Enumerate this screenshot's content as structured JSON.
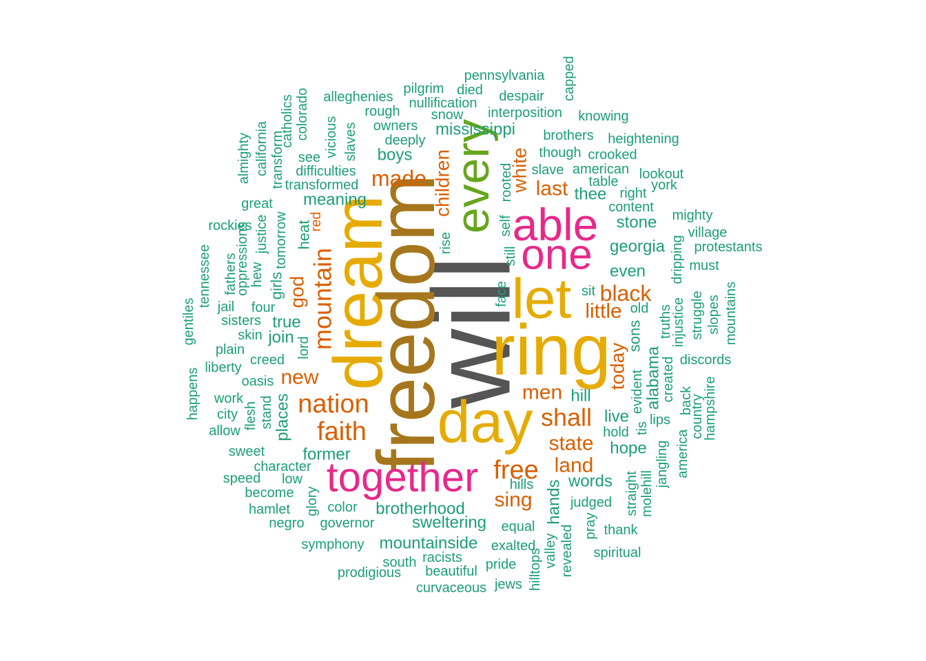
{
  "chart_data": {
    "type": "wordcloud",
    "title": "",
    "palette": {
      "teal": "#1b9e77",
      "orange": "#d95f02",
      "magenta": "#e7298a",
      "green": "#66a61e",
      "gold": "#e6ab02",
      "brown": "#a6761d",
      "gray": "#555555"
    },
    "words": [
      {
        "text": "will",
        "color": "gray",
        "tier": 9
      },
      {
        "text": "freedom",
        "color": "brown",
        "tier": 8
      },
      {
        "text": "ring",
        "color": "gold",
        "tier": 7
      },
      {
        "text": "dream",
        "color": "gold",
        "tier": 7
      },
      {
        "text": "day",
        "color": "gold",
        "tier": 7
      },
      {
        "text": "let",
        "color": "gold",
        "tier": 7
      },
      {
        "text": "every",
        "color": "green",
        "tier": 6
      },
      {
        "text": "able",
        "color": "magenta",
        "tier": 5
      },
      {
        "text": "one",
        "color": "magenta",
        "tier": 5
      },
      {
        "text": "together",
        "color": "magenta",
        "tier": 5
      },
      {
        "text": "nation",
        "color": "orange",
        "tier": 4
      },
      {
        "text": "faith",
        "color": "orange",
        "tier": 4
      },
      {
        "text": "mountain",
        "color": "orange",
        "tier": 4
      },
      {
        "text": "free",
        "color": "orange",
        "tier": 4
      },
      {
        "text": "shall",
        "color": "orange",
        "tier": 4
      },
      {
        "text": "black",
        "color": "orange",
        "tier": 3
      },
      {
        "text": "made",
        "color": "orange",
        "tier": 3
      },
      {
        "text": "new",
        "color": "orange",
        "tier": 3
      },
      {
        "text": "sing",
        "color": "orange",
        "tier": 3
      },
      {
        "text": "land",
        "color": "orange",
        "tier": 3
      },
      {
        "text": "state",
        "color": "orange",
        "tier": 3
      },
      {
        "text": "men",
        "color": "orange",
        "tier": 3
      },
      {
        "text": "today",
        "color": "orange",
        "tier": 3
      },
      {
        "text": "children",
        "color": "orange",
        "tier": 3
      },
      {
        "text": "white",
        "color": "orange",
        "tier": 3
      },
      {
        "text": "last",
        "color": "orange",
        "tier": 3
      },
      {
        "text": "little",
        "color": "orange",
        "tier": 3
      },
      {
        "text": "god",
        "color": "orange",
        "tier": 3
      },
      {
        "text": "brotherhood",
        "color": "teal",
        "tier": 2
      },
      {
        "text": "mountainside",
        "color": "teal",
        "tier": 2
      },
      {
        "text": "sweltering",
        "color": "teal",
        "tier": 2
      },
      {
        "text": "mississippi",
        "color": "teal",
        "tier": 2
      },
      {
        "text": "georgia",
        "color": "teal",
        "tier": 2
      },
      {
        "text": "alabama",
        "color": "teal",
        "tier": 2
      },
      {
        "text": "meaning",
        "color": "teal",
        "tier": 2
      },
      {
        "text": "former",
        "color": "teal",
        "tier": 2
      },
      {
        "text": "hands",
        "color": "teal",
        "tier": 2
      },
      {
        "text": "words",
        "color": "teal",
        "tier": 2
      },
      {
        "text": "hope",
        "color": "teal",
        "tier": 2
      },
      {
        "text": "stone",
        "color": "teal",
        "tier": 2
      },
      {
        "text": "even",
        "color": "teal",
        "tier": 2
      },
      {
        "text": "boys",
        "color": "teal",
        "tier": 2
      },
      {
        "text": "thee",
        "color": "teal",
        "tier": 2
      },
      {
        "text": "true",
        "color": "teal",
        "tier": 2
      },
      {
        "text": "join",
        "color": "teal",
        "tier": 2
      },
      {
        "text": "places",
        "color": "teal",
        "tier": 2
      },
      {
        "text": "girls",
        "color": "teal",
        "tier": 2
      },
      {
        "text": "heat",
        "color": "teal",
        "tier": 2
      },
      {
        "text": "live",
        "color": "teal",
        "tier": 2
      },
      {
        "text": "hill",
        "color": "teal",
        "tier": 2
      },
      {
        "text": "sons",
        "color": "teal",
        "tier": 2
      },
      {
        "text": "pennsylvania",
        "color": "teal",
        "tier": 1
      },
      {
        "text": "capped",
        "color": "teal",
        "tier": 1
      },
      {
        "text": "pilgrim",
        "color": "teal",
        "tier": 1
      },
      {
        "text": "died",
        "color": "teal",
        "tier": 1
      },
      {
        "text": "despair",
        "color": "teal",
        "tier": 1
      },
      {
        "text": "alleghenies",
        "color": "teal",
        "tier": 1
      },
      {
        "text": "nullification",
        "color": "teal",
        "tier": 1
      },
      {
        "text": "colorado",
        "color": "teal",
        "tier": 1
      },
      {
        "text": "rough",
        "color": "teal",
        "tier": 1
      },
      {
        "text": "snow",
        "color": "teal",
        "tier": 1
      },
      {
        "text": "interposition",
        "color": "teal",
        "tier": 1
      },
      {
        "text": "knowing",
        "color": "teal",
        "tier": 1
      },
      {
        "text": "catholics",
        "color": "teal",
        "tier": 1
      },
      {
        "text": "owners",
        "color": "teal",
        "tier": 1
      },
      {
        "text": "california",
        "color": "teal",
        "tier": 1
      },
      {
        "text": "vicious",
        "color": "teal",
        "tier": 1
      },
      {
        "text": "slaves",
        "color": "teal",
        "tier": 1
      },
      {
        "text": "deeply",
        "color": "teal",
        "tier": 1
      },
      {
        "text": "brothers",
        "color": "teal",
        "tier": 1
      },
      {
        "text": "heightening",
        "color": "teal",
        "tier": 1
      },
      {
        "text": "almighty",
        "color": "teal",
        "tier": 1
      },
      {
        "text": "transform",
        "color": "teal",
        "tier": 1
      },
      {
        "text": "see",
        "color": "teal",
        "tier": 1
      },
      {
        "text": "though",
        "color": "teal",
        "tier": 1
      },
      {
        "text": "crooked",
        "color": "teal",
        "tier": 1
      },
      {
        "text": "difficulties",
        "color": "teal",
        "tier": 1
      },
      {
        "text": "rooted",
        "color": "teal",
        "tier": 1
      },
      {
        "text": "slave",
        "color": "teal",
        "tier": 1
      },
      {
        "text": "american",
        "color": "teal",
        "tier": 1
      },
      {
        "text": "lookout",
        "color": "teal",
        "tier": 1
      },
      {
        "text": "transformed",
        "color": "teal",
        "tier": 1
      },
      {
        "text": "table",
        "color": "teal",
        "tier": 1
      },
      {
        "text": "york",
        "color": "teal",
        "tier": 1
      },
      {
        "text": "right",
        "color": "teal",
        "tier": 1
      },
      {
        "text": "great",
        "color": "teal",
        "tier": 1
      },
      {
        "text": "content",
        "color": "teal",
        "tier": 1
      },
      {
        "text": "self",
        "color": "teal",
        "tier": 1
      },
      {
        "text": "mighty",
        "color": "teal",
        "tier": 1
      },
      {
        "text": "rockies",
        "color": "teal",
        "tier": 1
      },
      {
        "text": "justice",
        "color": "teal",
        "tier": 1
      },
      {
        "text": "tomorrow",
        "color": "teal",
        "tier": 1
      },
      {
        "text": "red",
        "color": "orange",
        "tier": 1
      },
      {
        "text": "rise",
        "color": "teal",
        "tier": 1
      },
      {
        "text": "village",
        "color": "teal",
        "tier": 1
      },
      {
        "text": "oppressions",
        "color": "teal",
        "tier": 1
      },
      {
        "text": "tennessee",
        "color": "teal",
        "tier": 1
      },
      {
        "text": "protestants",
        "color": "teal",
        "tier": 1
      },
      {
        "text": "dripping",
        "color": "teal",
        "tier": 1
      },
      {
        "text": "fathers",
        "color": "teal",
        "tier": 1
      },
      {
        "text": "still",
        "color": "teal",
        "tier": 1
      },
      {
        "text": "must",
        "color": "teal",
        "tier": 1
      },
      {
        "text": "hew",
        "color": "teal",
        "tier": 1
      },
      {
        "text": "face",
        "color": "teal",
        "tier": 1
      },
      {
        "text": "sit",
        "color": "teal",
        "tier": 1
      },
      {
        "text": "mountains",
        "color": "teal",
        "tier": 1
      },
      {
        "text": "jail",
        "color": "teal",
        "tier": 1
      },
      {
        "text": "four",
        "color": "teal",
        "tier": 1
      },
      {
        "text": "old",
        "color": "teal",
        "tier": 1
      },
      {
        "text": "truths",
        "color": "teal",
        "tier": 1
      },
      {
        "text": "injustice",
        "color": "teal",
        "tier": 1
      },
      {
        "text": "struggle",
        "color": "teal",
        "tier": 1
      },
      {
        "text": "slopes",
        "color": "teal",
        "tier": 1
      },
      {
        "text": "gentiles",
        "color": "teal",
        "tier": 1
      },
      {
        "text": "sisters",
        "color": "teal",
        "tier": 1
      },
      {
        "text": "skin",
        "color": "teal",
        "tier": 1
      },
      {
        "text": "plain",
        "color": "teal",
        "tier": 1
      },
      {
        "text": "lord",
        "color": "teal",
        "tier": 1
      },
      {
        "text": "discords",
        "color": "teal",
        "tier": 1
      },
      {
        "text": "liberty",
        "color": "teal",
        "tier": 1
      },
      {
        "text": "creed",
        "color": "teal",
        "tier": 1
      },
      {
        "text": "created",
        "color": "teal",
        "tier": 1
      },
      {
        "text": "evident",
        "color": "teal",
        "tier": 1
      },
      {
        "text": "happens",
        "color": "teal",
        "tier": 1
      },
      {
        "text": "oasis",
        "color": "teal",
        "tier": 1
      },
      {
        "text": "hampshire",
        "color": "teal",
        "tier": 1
      },
      {
        "text": "back",
        "color": "teal",
        "tier": 1
      },
      {
        "text": "country",
        "color": "teal",
        "tier": 1
      },
      {
        "text": "work",
        "color": "teal",
        "tier": 1
      },
      {
        "text": "flesh",
        "color": "teal",
        "tier": 1
      },
      {
        "text": "stand",
        "color": "teal",
        "tier": 1
      },
      {
        "text": "city",
        "color": "teal",
        "tier": 1
      },
      {
        "text": "allow",
        "color": "teal",
        "tier": 1
      },
      {
        "text": "lips",
        "color": "teal",
        "tier": 1
      },
      {
        "text": "tis",
        "color": "teal",
        "tier": 1
      },
      {
        "text": "hold",
        "color": "teal",
        "tier": 1
      },
      {
        "text": "america",
        "color": "teal",
        "tier": 1
      },
      {
        "text": "jangling",
        "color": "teal",
        "tier": 1
      },
      {
        "text": "sweet",
        "color": "teal",
        "tier": 1
      },
      {
        "text": "character",
        "color": "teal",
        "tier": 1
      },
      {
        "text": "speed",
        "color": "teal",
        "tier": 1
      },
      {
        "text": "low",
        "color": "teal",
        "tier": 1
      },
      {
        "text": "molehill",
        "color": "teal",
        "tier": 1
      },
      {
        "text": "straight",
        "color": "teal",
        "tier": 1
      },
      {
        "text": "hills",
        "color": "teal",
        "tier": 1
      },
      {
        "text": "become",
        "color": "teal",
        "tier": 1
      },
      {
        "text": "glory",
        "color": "teal",
        "tier": 1
      },
      {
        "text": "judged",
        "color": "teal",
        "tier": 1
      },
      {
        "text": "hamlet",
        "color": "teal",
        "tier": 1
      },
      {
        "text": "color",
        "color": "teal",
        "tier": 1
      },
      {
        "text": "negro",
        "color": "teal",
        "tier": 1
      },
      {
        "text": "governor",
        "color": "teal",
        "tier": 1
      },
      {
        "text": "equal",
        "color": "teal",
        "tier": 1
      },
      {
        "text": "revealed",
        "color": "teal",
        "tier": 1
      },
      {
        "text": "pray",
        "color": "teal",
        "tier": 1
      },
      {
        "text": "thank",
        "color": "teal",
        "tier": 1
      },
      {
        "text": "symphony",
        "color": "teal",
        "tier": 1
      },
      {
        "text": "exalted",
        "color": "teal",
        "tier": 1
      },
      {
        "text": "valley",
        "color": "teal",
        "tier": 1
      },
      {
        "text": "spiritual",
        "color": "teal",
        "tier": 1
      },
      {
        "text": "racists",
        "color": "teal",
        "tier": 1
      },
      {
        "text": "south",
        "color": "teal",
        "tier": 1
      },
      {
        "text": "pride",
        "color": "teal",
        "tier": 1
      },
      {
        "text": "hilltops",
        "color": "teal",
        "tier": 1
      },
      {
        "text": "prodigious",
        "color": "teal",
        "tier": 1
      },
      {
        "text": "beautiful",
        "color": "teal",
        "tier": 1
      },
      {
        "text": "curvaceous",
        "color": "teal",
        "tier": 1
      },
      {
        "text": "jews",
        "color": "teal",
        "tier": 1
      }
    ]
  }
}
